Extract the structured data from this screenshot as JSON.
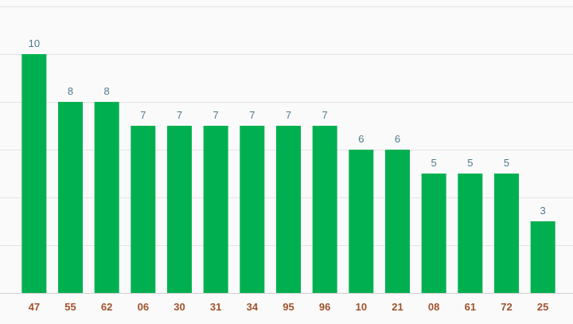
{
  "chart_data": {
    "type": "bar",
    "categories": [
      "47",
      "55",
      "62",
      "06",
      "30",
      "31",
      "34",
      "95",
      "96",
      "10",
      "21",
      "08",
      "61",
      "72",
      "25"
    ],
    "values": [
      10,
      8,
      8,
      7,
      7,
      7,
      7,
      7,
      7,
      6,
      6,
      5,
      5,
      5,
      3
    ],
    "title": "",
    "xlabel": "",
    "ylabel": "",
    "ylim": [
      0,
      12
    ],
    "grid": true,
    "legend": "none",
    "colors": {
      "bar": "#00b050",
      "value_label": "#4e7a8e",
      "category_label": "#a0522d",
      "grid": "#e3e3e3",
      "background": "#fafafa"
    }
  }
}
